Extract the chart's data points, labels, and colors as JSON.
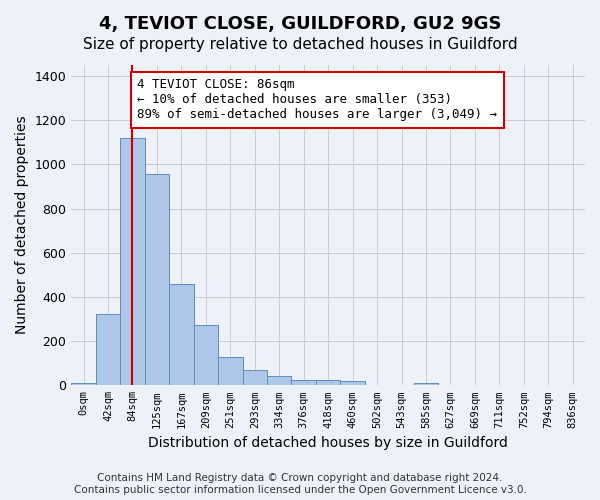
{
  "title": "4, TEVIOT CLOSE, GUILDFORD, GU2 9GS",
  "subtitle": "Size of property relative to detached houses in Guildford",
  "xlabel": "Distribution of detached houses by size in Guildford",
  "ylabel": "Number of detached properties",
  "bin_labels": [
    "0sqm",
    "42sqm",
    "84sqm",
    "125sqm",
    "167sqm",
    "209sqm",
    "251sqm",
    "293sqm",
    "334sqm",
    "376sqm",
    "418sqm",
    "460sqm",
    "502sqm",
    "543sqm",
    "585sqm",
    "627sqm",
    "669sqm",
    "711sqm",
    "752sqm",
    "794sqm",
    "836sqm"
  ],
  "bar_heights": [
    10,
    325,
    1120,
    955,
    460,
    275,
    130,
    70,
    40,
    25,
    25,
    20,
    0,
    0,
    10,
    0,
    0,
    0,
    0,
    0,
    0
  ],
  "bar_color": "#aec6e8",
  "bar_edgecolor": "#5a8fc0",
  "grid_color": "#cccccc",
  "background_color": "#eef2f8",
  "vline_x_index": 2,
  "vline_color": "#cc0000",
  "annotation_text": "4 TEVIOT CLOSE: 86sqm\n← 10% of detached houses are smaller (353)\n89% of semi-detached houses are larger (3,049) →",
  "annotation_box_color": "#ffffff",
  "annotation_box_edgecolor": "#cc0000",
  "ylim": [
    0,
    1450
  ],
  "yticks": [
    0,
    200,
    400,
    600,
    800,
    1000,
    1200,
    1400
  ],
  "footnote": "Contains HM Land Registry data © Crown copyright and database right 2024.\nContains public sector information licensed under the Open Government Licence v3.0.",
  "title_fontsize": 13,
  "subtitle_fontsize": 11,
  "xlabel_fontsize": 10,
  "ylabel_fontsize": 10,
  "annotation_fontsize": 9,
  "footnote_fontsize": 7.5
}
